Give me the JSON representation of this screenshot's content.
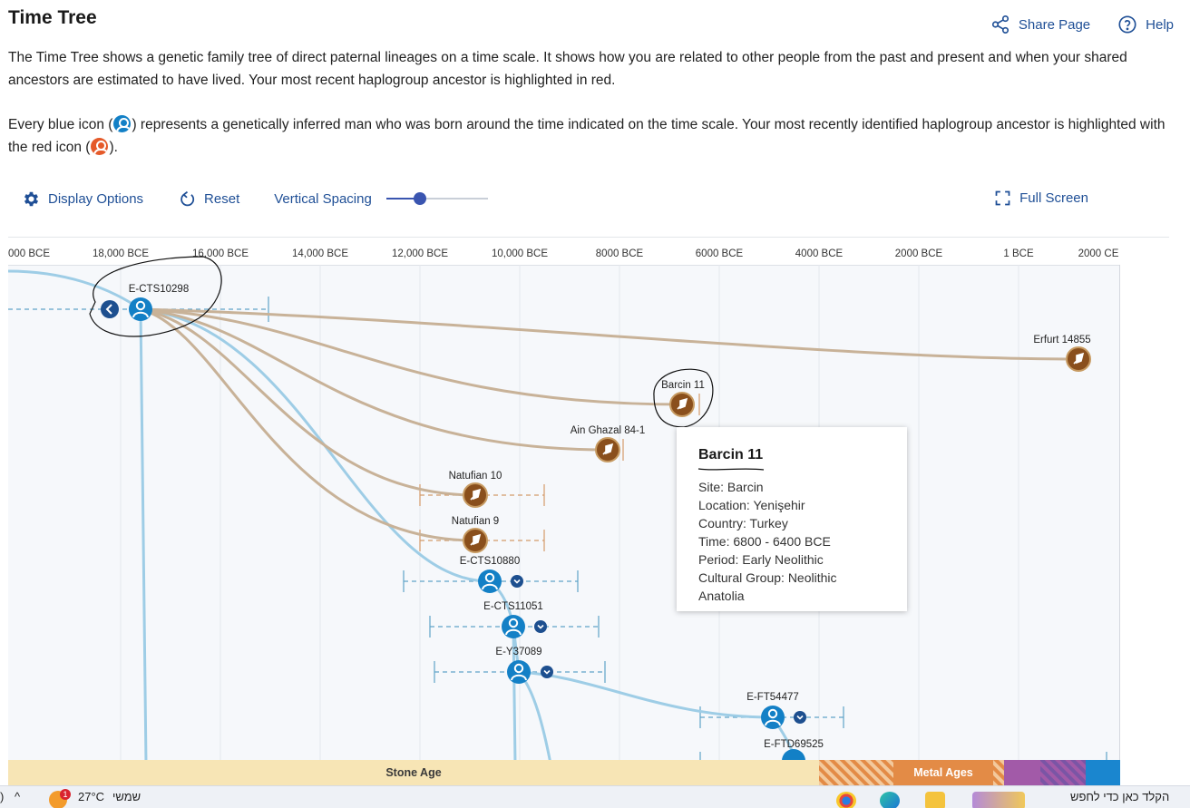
{
  "header": {
    "title": "Time Tree",
    "share_label": "Share Page",
    "help_label": "Help"
  },
  "intro": {
    "p1": "The Time Tree shows a genetic family tree of direct paternal lineages on a time scale. It shows how you are related to other people from the past and present and when your shared ancestors are estimated to have lived. Your most recent haplogroup ancestor is highlighted in red.",
    "p2_a": "Every blue icon (",
    "p2_b": ") represents a genetically inferred man who was born around the time indicated on the time scale. Your most recently identified haplogroup ancestor is highlighted with the red icon (",
    "p2_c": ")."
  },
  "toolbar": {
    "display_options": "Display Options",
    "reset": "Reset",
    "vertical_spacing": "Vertical Spacing",
    "vertical_spacing_level": 0.33,
    "full_screen": "Full Screen"
  },
  "axis": {
    "ticks": [
      "000 BCE",
      "18,000 BCE",
      "16,000 BCE",
      "14,000 BCE",
      "12,000 BCE",
      "10,000 BCE",
      "8000 BCE",
      "6000 BCE",
      "4000 BCE",
      "2000 BCE",
      "1 BCE",
      "2000 CE"
    ]
  },
  "nodes": {
    "e_cts10298": "E-CTS10298",
    "erfurt": "Erfurt 14855",
    "barcin": "Barcin 11",
    "ain_ghazal": "Ain Ghazal 84-1",
    "natufian10": "Natufian 10",
    "natufian9": "Natufian 9",
    "e_cts10880": "E-CTS10880",
    "e_cts11051": "E-CTS11051",
    "e_y37089": "E-Y37089",
    "e_ft54477": "E-FT54477",
    "e_ftd69525": "E-FTD69525"
  },
  "eras": {
    "stone": "Stone Age",
    "metal": "Metal Ages"
  },
  "colors": {
    "accent": "#1f4f96",
    "blue_node": "#1380c6",
    "ancient_node": "#8a4f1c",
    "ancient_line": "#c8b298",
    "blue_line": "#9ecde6",
    "stone_age": "#f7e5b5",
    "metal_age": "#e38b46"
  },
  "tooltip": {
    "title": "Barcin 11",
    "site": "Site: Barcin",
    "location": "Location: Yenişehir",
    "country": "Country: Turkey",
    "time": "Time: 6800 - 6400 BCE",
    "period": "Period: Early Neolithic",
    "cultural_group": "Cultural Group: Neolithic Anatolia"
  },
  "taskbar": {
    "weather": "27°C",
    "weather_badge": "1",
    "weather_day": "שמשי",
    "search_placeholder": "הקלד כאן כדי לחפש"
  }
}
